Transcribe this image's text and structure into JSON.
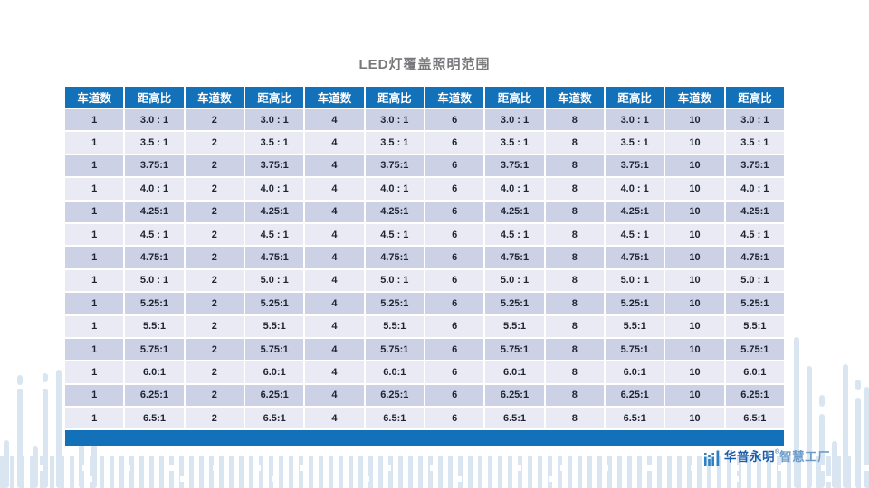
{
  "title": "LED灯覆盖照明范围",
  "table": {
    "lane_header": "车道数",
    "ratio_header": "距高比",
    "lanes": [
      "1",
      "2",
      "4",
      "6",
      "8",
      "10"
    ],
    "ratios": [
      "3.0 : 1",
      "3.5 : 1",
      "3.75:1",
      "4.0 : 1",
      "4.25:1",
      "4.5 : 1",
      "4.75:1",
      "5.0 : 1",
      "5.25:1",
      "5.5:1",
      "5.75:1",
      "6.0:1",
      "6.25:1",
      "6.5:1"
    ]
  },
  "footer_logo": {
    "brand": "华普永明",
    "registered_mark": "®",
    "suffix": "智慧工厂"
  },
  "colors": {
    "header_blue": "#1271B8",
    "footer_bar_blue": "#1271B8",
    "row_dark": "#CCD1E5",
    "row_light": "#E9EAF4",
    "cell_text": "#1F2433",
    "title_gray": "#77797C",
    "deco_bar": "#D9E6F1",
    "logo_icon_blue": "#2F80C3",
    "logo_dark_blue": "#1D5CA8",
    "logo_light_blue": "#6E9DCB"
  }
}
